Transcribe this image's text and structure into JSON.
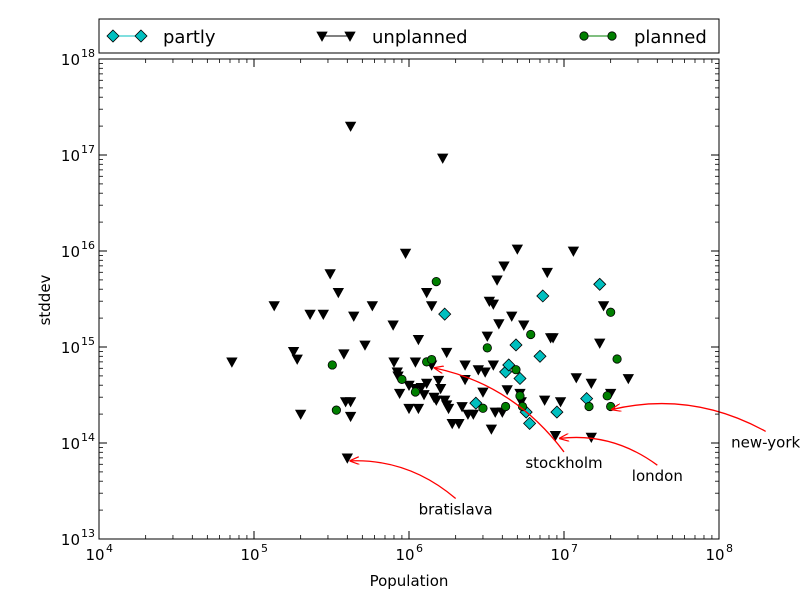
{
  "chart_data": {
    "type": "scatter",
    "xlabel": "Population",
    "ylabel": "stddev",
    "xscale": "log",
    "yscale": "log",
    "xlim": [
      10000,
      100000000
    ],
    "ylim": [
      10000000000000.0,
      1e+18
    ],
    "x_ticks": [
      {
        "value": 10000,
        "base": "10",
        "exp": "4"
      },
      {
        "value": 100000,
        "base": "10",
        "exp": "5"
      },
      {
        "value": 1000000,
        "base": "10",
        "exp": "6"
      },
      {
        "value": 10000000,
        "base": "10",
        "exp": "7"
      },
      {
        "value": 100000000,
        "base": "10",
        "exp": "8"
      }
    ],
    "y_ticks": [
      {
        "value": 10000000000000.0,
        "base": "10",
        "exp": "13"
      },
      {
        "value": 100000000000000.0,
        "base": "10",
        "exp": "14"
      },
      {
        "value": 1000000000000000.0,
        "base": "10",
        "exp": "15"
      },
      {
        "value": 1e+16,
        "base": "10",
        "exp": "16"
      },
      {
        "value": 1e+17,
        "base": "10",
        "exp": "17"
      },
      {
        "value": 1e+18,
        "base": "10",
        "exp": "18"
      }
    ],
    "grid": false,
    "legend_position": "top, outside plot, horizontal",
    "series": [
      {
        "name": "partly",
        "marker": "diamond",
        "color": "#00bfbf",
        "points": [
          [
            1700000,
            2200000000000000.0
          ],
          [
            2700000,
            260000000000000.0
          ],
          [
            4200000,
            550000000000000.0
          ],
          [
            4400000,
            650000000000000.0
          ],
          [
            4900000,
            1050000000000000.0
          ],
          [
            5200000,
            470000000000000.0
          ],
          [
            5700000,
            210000000000000.0
          ],
          [
            6000000,
            160000000000000.0
          ],
          [
            7000000,
            800000000000000.0
          ],
          [
            7300000,
            3400000000000000.0
          ],
          [
            9000000,
            210000000000000.0
          ],
          [
            14000000,
            290000000000000.0
          ],
          [
            17000000,
            4500000000000000.0
          ]
        ]
      },
      {
        "name": "unplanned",
        "marker": "triangle_down",
        "color": "#000000",
        "points": [
          [
            72000,
            700000000000000.0
          ],
          [
            135000,
            2700000000000000.0
          ],
          [
            180000,
            900000000000000.0
          ],
          [
            190000,
            750000000000000.0
          ],
          [
            200000,
            200000000000000.0
          ],
          [
            230000,
            2200000000000000.0
          ],
          [
            280000,
            2200000000000000.0
          ],
          [
            310000,
            5800000000000000.0
          ],
          [
            350000,
            3700000000000000.0
          ],
          [
            380000,
            850000000000000.0
          ],
          [
            390000,
            270000000000000.0
          ],
          [
            400000,
            70000000000000.0
          ],
          [
            420000,
            270000000000000.0
          ],
          [
            420000,
            190000000000000.0
          ],
          [
            420000,
            2e+17
          ],
          [
            440000,
            2100000000000000.0
          ],
          [
            520000,
            1050000000000000.0
          ],
          [
            580000,
            2700000000000000.0
          ],
          [
            790000,
            1700000000000000.0
          ],
          [
            800000,
            700000000000000.0
          ],
          [
            840000,
            550000000000000.0
          ],
          [
            850000,
            500000000000000.0
          ],
          [
            870000,
            330000000000000.0
          ],
          [
            950000,
            9500000000000000.0
          ],
          [
            1000000,
            400000000000000.0
          ],
          [
            1000000,
            230000000000000.0
          ],
          [
            1100000,
            700000000000000.0
          ],
          [
            1100000,
            370000000000000.0
          ],
          [
            1150000,
            1200000000000000.0
          ],
          [
            1150000,
            230000000000000.0
          ],
          [
            1200000,
            380000000000000.0
          ],
          [
            1250000,
            320000000000000.0
          ],
          [
            1300000,
            3700000000000000.0
          ],
          [
            1300000,
            420000000000000.0
          ],
          [
            1400000,
            2700000000000000.0
          ],
          [
            1400000,
            650000000000000.0
          ],
          [
            1450000,
            300000000000000.0
          ],
          [
            1500000,
            280000000000000.0
          ],
          [
            1550000,
            450000000000000.0
          ],
          [
            1600000,
            370000000000000.0
          ],
          [
            1650000,
            9.3e+16
          ],
          [
            1700000,
            280000000000000.0
          ],
          [
            1750000,
            880000000000000.0
          ],
          [
            1750000,
            250000000000000.0
          ],
          [
            1800000,
            230000000000000.0
          ],
          [
            1900000,
            160000000000000.0
          ],
          [
            2100000,
            160000000000000.0
          ],
          [
            2200000,
            240000000000000.0
          ],
          [
            2300000,
            650000000000000.0
          ],
          [
            2300000,
            460000000000000.0
          ],
          [
            2400000,
            200000000000000.0
          ],
          [
            2600000,
            200000000000000.0
          ],
          [
            2800000,
            580000000000000.0
          ],
          [
            3000000,
            340000000000000.0
          ],
          [
            3100000,
            550000000000000.0
          ],
          [
            3200000,
            1300000000000000.0
          ],
          [
            3300000,
            3000000000000000.0
          ],
          [
            3400000,
            140000000000000.0
          ],
          [
            3500000,
            2800000000000000.0
          ],
          [
            3500000,
            650000000000000.0
          ],
          [
            3600000,
            210000000000000.0
          ],
          [
            3700000,
            5000000000000000.0
          ],
          [
            3800000,
            1750000000000000.0
          ],
          [
            4000000,
            210000000000000.0
          ],
          [
            4100000,
            7000000000000000.0
          ],
          [
            4300000,
            360000000000000.0
          ],
          [
            4600000,
            2100000000000000.0
          ],
          [
            5000000,
            1.05e+16
          ],
          [
            5200000,
            330000000000000.0
          ],
          [
            5300000,
            270000000000000.0
          ],
          [
            5500000,
            1700000000000000.0
          ],
          [
            7500000,
            280000000000000.0
          ],
          [
            7800000,
            6000000000000000.0
          ],
          [
            8200000,
            1250000000000000.0
          ],
          [
            8500000,
            1250000000000000.0
          ],
          [
            8800000,
            120000000000000.0
          ],
          [
            9500000,
            270000000000000.0
          ],
          [
            11500000,
            1e+16
          ],
          [
            12000000,
            480000000000000.0
          ],
          [
            15000000,
            420000000000000.0
          ],
          [
            15000000,
            115000000000000.0
          ],
          [
            17000000,
            1100000000000000.0
          ],
          [
            18000000,
            2700000000000000.0
          ],
          [
            20000000,
            330000000000000.0
          ],
          [
            26000000,
            470000000000000.0
          ]
        ]
      },
      {
        "name": "planned",
        "marker": "circle",
        "color": "#007f00",
        "points": [
          [
            320000,
            650000000000000.0
          ],
          [
            340000,
            220000000000000.0
          ],
          [
            900000,
            460000000000000.0
          ],
          [
            1100000,
            340000000000000.0
          ],
          [
            1300000,
            700000000000000.0
          ],
          [
            1400000,
            740000000000000.0
          ],
          [
            1500000,
            4800000000000000.0
          ],
          [
            3000000,
            230000000000000.0
          ],
          [
            3200000,
            980000000000000.0
          ],
          [
            4200000,
            240000000000000.0
          ],
          [
            4900000,
            580000000000000.0
          ],
          [
            5200000,
            310000000000000.0
          ],
          [
            5400000,
            240000000000000.0
          ],
          [
            6100000,
            1350000000000000.0
          ],
          [
            14500000,
            240000000000000.0
          ],
          [
            19000000,
            310000000000000.0
          ],
          [
            20000000,
            240000000000000.0
          ],
          [
            20000000,
            2300000000000000.0
          ],
          [
            22000000,
            750000000000000.0
          ]
        ]
      }
    ],
    "annotations": [
      {
        "text": "bratislava",
        "text_at": [
          2000000,
          18000000000000.0
        ],
        "point": [
          400000,
          70000000000000.0
        ]
      },
      {
        "text": "stockholm",
        "text_at": [
          10000000,
          55000000000000.0
        ],
        "point": [
          1400000,
          650000000000000.0
        ]
      },
      {
        "text": "london",
        "text_at": [
          40000000,
          40000000000000.0
        ],
        "point": [
          9000000,
          120000000000000.0
        ]
      },
      {
        "text": "new-york",
        "text_at": [
          200000000,
          90000000000000.0
        ],
        "point": [
          19500000,
          240000000000000.0
        ]
      }
    ]
  }
}
